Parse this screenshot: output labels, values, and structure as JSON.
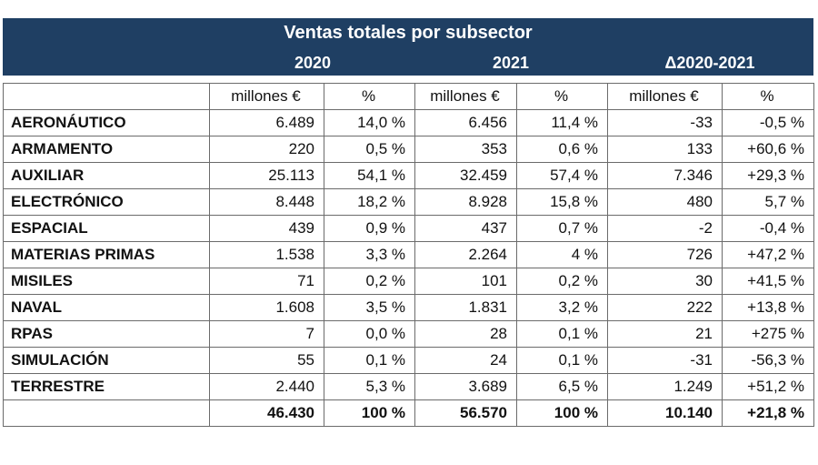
{
  "table": {
    "title": "Ventas totales por subsector",
    "year_headers": [
      "2020",
      "2021",
      "Δ2020-2021"
    ],
    "sub_headers": [
      "millones €",
      "%",
      "millones €",
      "%",
      "millones €",
      "%"
    ],
    "rows": [
      {
        "name": "AERONÁUTICO",
        "values": [
          "6.489",
          "14,0 %",
          "6.456",
          "11,4 %",
          "-33",
          "-0,5 %"
        ]
      },
      {
        "name": "ARMAMENTO",
        "values": [
          "220",
          "0,5 %",
          "353",
          "0,6 %",
          "133",
          "+60,6 %"
        ]
      },
      {
        "name": "AUXILIAR",
        "values": [
          "25.113",
          "54,1 %",
          "32.459",
          "57,4 %",
          "7.346",
          "+29,3 %"
        ]
      },
      {
        "name": "ELECTRÓNICO",
        "values": [
          "8.448",
          "18,2 %",
          "8.928",
          "15,8 %",
          "480",
          "5,7 %"
        ]
      },
      {
        "name": "ESPACIAL",
        "values": [
          "439",
          "0,9 %",
          "437",
          "0,7 %",
          "-2",
          "-0,4 %"
        ]
      },
      {
        "name": "MATERIAS PRIMAS",
        "values": [
          "1.538",
          "3,3 %",
          "2.264",
          "4 %",
          "726",
          "+47,2 %"
        ]
      },
      {
        "name": "MISILES",
        "values": [
          "71",
          "0,2 %",
          "101",
          "0,2 %",
          "30",
          "+41,5 %"
        ]
      },
      {
        "name": "NAVAL",
        "values": [
          "1.608",
          "3,5 %",
          "1.831",
          "3,2 %",
          "222",
          "+13,8 %"
        ]
      },
      {
        "name": "RPAS",
        "values": [
          "7",
          "0,0 %",
          "28",
          "0,1 %",
          "21",
          "+275 %"
        ]
      },
      {
        "name": "SIMULACIÓN",
        "values": [
          "55",
          "0,1 %",
          "24",
          "0,1 %",
          "-31",
          "-56,3 %"
        ]
      },
      {
        "name": "TERRESTRE",
        "values": [
          "2.440",
          "5,3 %",
          "3.689",
          "6,5 %",
          "1.249",
          "+51,2 %"
        ]
      }
    ],
    "total": {
      "name": "",
      "values": [
        "46.430",
        "100 %",
        "56.570",
        "100 %",
        "10.140",
        "+21,8 %"
      ]
    }
  },
  "colors": {
    "banner": "#1f3f63",
    "banner_text": "#ffffff",
    "grid": "#6b6b6b"
  }
}
